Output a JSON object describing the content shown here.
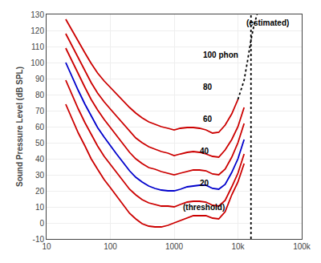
{
  "chart_data": {
    "type": "line",
    "log": "x",
    "ylabel": "Sound Pressure Level (dB SPL)",
    "xlim": [
      10,
      100000
    ],
    "ylim": [
      -10,
      130
    ],
    "xticks": [
      10,
      100,
      1000,
      {
        "value": 10000,
        "label": "10k"
      },
      {
        "value": 100000,
        "label": "100k"
      }
    ],
    "yticks": [
      -10,
      0,
      10,
      20,
      30,
      40,
      50,
      60,
      70,
      80,
      90,
      100,
      110,
      120,
      130
    ],
    "grid": true,
    "x": [
      20,
      25,
      31.5,
      40,
      50,
      63,
      80,
      100,
      125,
      160,
      200,
      250,
      315,
      400,
      500,
      630,
      800,
      1000,
      1250,
      1600,
      2000,
      2500,
      3150,
      4000,
      5000,
      6300,
      8000,
      10000,
      12500
    ],
    "series": [
      {
        "color": "#cc0000",
        "line_style": "solid",
        "values": [
          74.0,
          65.0,
          56.0,
          48.0,
          40.0,
          33.5,
          27.0,
          22.0,
          17.0,
          11.5,
          6.0,
          2.5,
          -0.5,
          -2.0,
          -2.5,
          -2.5,
          -1.5,
          0.0,
          1.5,
          3.0,
          4.5,
          4.5,
          4.5,
          3.0,
          2.5,
          7.0,
          17.5,
          25.5,
          37.0
        ]
      },
      {
        "color": "#cc0000",
        "line_style": "solid",
        "values": [
          89.0,
          80.0,
          71.0,
          62.5,
          55.0,
          48.0,
          41.5,
          36.5,
          31.5,
          26.0,
          21.0,
          17.5,
          14.5,
          12.5,
          11.5,
          10.5,
          10.5,
          10.0,
          11.5,
          13.0,
          13.5,
          13.5,
          13.0,
          11.0,
          10.5,
          14.0,
          22.5,
          31.0,
          43.0
        ]
      },
      {
        "color": "#cc0000",
        "line_style": "solid",
        "values": [
          109.0,
          101.0,
          92.5,
          84.5,
          77.0,
          70.5,
          64.5,
          59.5,
          54.5,
          49.0,
          44.0,
          40.0,
          37.0,
          34.5,
          33.5,
          32.0,
          31.0,
          30.0,
          31.0,
          32.0,
          33.0,
          33.0,
          32.5,
          30.5,
          30.0,
          33.5,
          41.0,
          50.0,
          62.0
        ]
      },
      {
        "color": "#cc0000",
        "line_style": "solid",
        "values": [
          118.0,
          110.5,
          102.5,
          94.5,
          87.5,
          81.0,
          75.5,
          71.0,
          66.5,
          61.5,
          57.0,
          53.0,
          50.0,
          47.5,
          46.0,
          44.5,
          43.5,
          42.0,
          43.0,
          44.0,
          44.5,
          44.0,
          43.0,
          41.5,
          41.0,
          45.5,
          52.0,
          60.0,
          72.0
        ]
      },
      {
        "color": "#0000cc",
        "line_style": "solid",
        "values": [
          100.0,
          91.0,
          82.5,
          74.0,
          66.5,
          59.5,
          53.5,
          48.0,
          43.0,
          37.5,
          32.5,
          28.5,
          25.5,
          23.0,
          21.5,
          20.5,
          20.0,
          20.0,
          21.0,
          22.5,
          23.0,
          23.5,
          23.5,
          21.5,
          21.0,
          24.0,
          31.5,
          40.0,
          52.0
        ]
      },
      {
        "color": "#cc0000",
        "line_style": "solid",
        "values": [
          127.0,
          120.0,
          113.0,
          106.0,
          99.5,
          93.5,
          88.5,
          84.5,
          80.0,
          76.0,
          72.0,
          68.5,
          65.5,
          63.0,
          61.5,
          60.0,
          59.0,
          58.0,
          59.0,
          59.5,
          59.5,
          59.0,
          58.0,
          56.0,
          56.5,
          61.0,
          68.0,
          77.0,
          null
        ]
      },
      {
        "color": "#000000",
        "line_style": "dotted",
        "x": [
          10000,
          12500,
          14000,
          16000,
          18000,
          20000
        ],
        "values": [
          77.0,
          89.0,
          100.0,
          114.0,
          124.0,
          130.0
        ]
      }
    ],
    "vline": {
      "x": 16000,
      "color": "#000000",
      "line_style": "dotted"
    },
    "annotations": [
      {
        "text": "100 phon",
        "x": 2700,
        "y": 101
      },
      {
        "text": "80",
        "x": 2700,
        "y": 81
      },
      {
        "text": "60",
        "x": 2700,
        "y": 61
      },
      {
        "text": "40",
        "x": 2400,
        "y": 41
      },
      {
        "text": "20",
        "x": 2400,
        "y": 21
      },
      {
        "text": "(threshold)",
        "x": 1300,
        "y": 6
      },
      {
        "text": "(estimated)",
        "x": 12800,
        "y": 121
      }
    ]
  }
}
